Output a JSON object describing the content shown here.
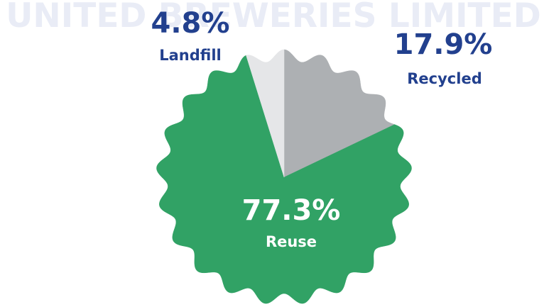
{
  "chart_data": {
    "type": "pie",
    "watermark": "UNITED BREWERIES LIMITED",
    "categories": [
      "Recycled",
      "Reuse",
      "Landfill"
    ],
    "values": [
      17.9,
      77.3,
      4.8
    ],
    "value_labels": [
      "17.9%",
      "77.3%",
      "4.8%"
    ],
    "colors": [
      "#adb0b3",
      "#31a265",
      "#e5e6e8"
    ],
    "label_colors": [
      "#22408e",
      "#ffffff",
      "#22408e"
    ]
  }
}
